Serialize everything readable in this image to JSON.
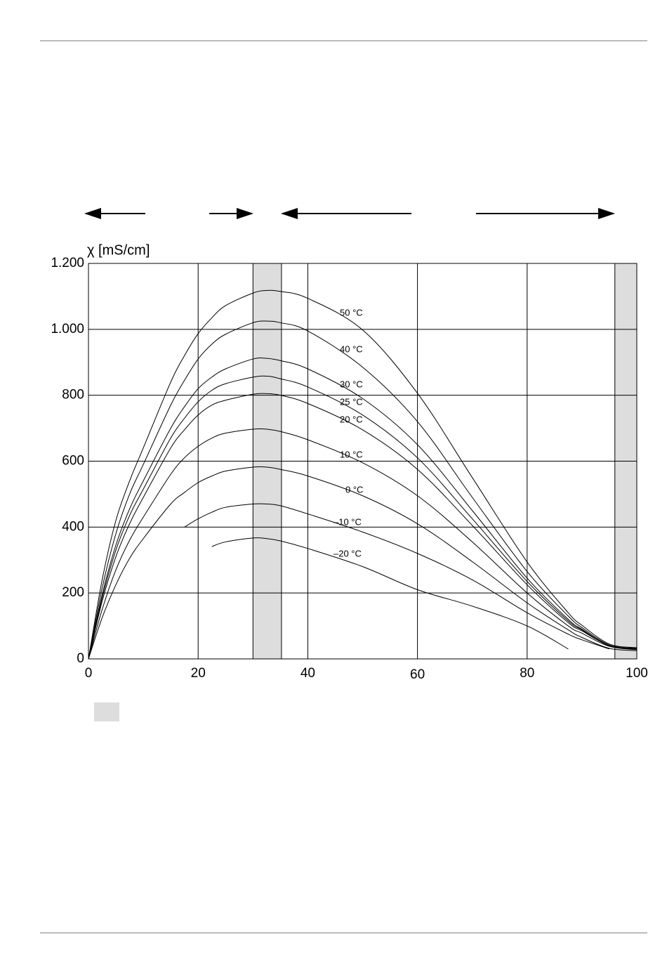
{
  "chart_data": {
    "type": "line",
    "y_label": "χ [mS/cm]",
    "x": [
      0,
      2.5,
      5,
      7.5,
      10,
      15,
      17.5,
      20,
      22.5,
      25,
      30,
      32.5,
      35,
      40,
      50,
      60,
      70,
      80,
      87.5,
      90,
      95,
      100
    ],
    "series": [
      {
        "name": "50 °C",
        "color": "#000000",
        "values": [
          0,
          240,
          420,
          540,
          640,
          840,
          920,
          987,
          1035,
          1072,
          1110,
          1118,
          1115,
          1094,
          998,
          806,
          550,
          294,
          140,
          102,
          45,
          34
        ]
      },
      {
        "name": "40 °C",
        "color": "#000000",
        "values": [
          0,
          215,
          380,
          500,
          590,
          770,
          845,
          910,
          955,
          985,
          1020,
          1025,
          1020,
          995,
          885,
          720,
          490,
          265,
          130,
          95,
          42,
          32
        ]
      },
      {
        "name": "30 °C",
        "color": "#000000",
        "values": [
          0,
          195,
          345,
          455,
          540,
          700,
          765,
          820,
          855,
          880,
          910,
          912,
          905,
          880,
          790,
          650,
          450,
          245,
          120,
          90,
          40,
          30
        ]
      },
      {
        "name": "25 °C",
        "color": "#000000",
        "values": [
          0,
          185,
          330,
          435,
          515,
          670,
          730,
          780,
          815,
          835,
          855,
          858,
          850,
          825,
          740,
          610,
          425,
          235,
          115,
          88,
          40,
          30
        ]
      },
      {
        "name": "20 °C",
        "color": "#000000",
        "values": [
          0,
          175,
          310,
          410,
          490,
          640,
          695,
          740,
          770,
          785,
          803,
          805,
          800,
          775,
          695,
          575,
          405,
          225,
          110,
          85,
          40,
          30
        ]
      },
      {
        "name": "10 °C",
        "color": "#000000",
        "values": [
          0,
          150,
          270,
          360,
          430,
          560,
          610,
          645,
          670,
          685,
          697,
          697,
          690,
          665,
          595,
          495,
          355,
          200,
          100,
          78,
          38,
          28
        ]
      },
      {
        "name": "0 °C",
        "color": "#000000",
        "values": [
          0,
          125,
          225,
          305,
          365,
          470,
          505,
          535,
          555,
          570,
          582,
          582,
          575,
          555,
          495,
          410,
          295,
          170,
          88,
          65,
          32,
          25
        ]
      },
      {
        "name": "–10 °C",
        "color": "#000000",
        "values": [
          null,
          null,
          null,
          null,
          null,
          null,
          400,
          425,
          445,
          460,
          470,
          470,
          465,
          440,
          385,
          320,
          240,
          140,
          75,
          58,
          30,
          null
        ]
      },
      {
        "name": "–20 °C",
        "color": "#000000",
        "values": [
          null,
          null,
          null,
          null,
          null,
          null,
          null,
          null,
          341,
          355,
          367,
          365,
          358,
          335,
          280,
          210,
          160,
          100,
          30,
          null,
          null,
          null
        ]
      }
    ],
    "bands": [
      [
        30,
        35.2
      ],
      [
        96,
        100
      ]
    ],
    "band_color": "#dddddd",
    "xlim": [
      0,
      100
    ],
    "xticks": [
      0,
      20,
      40,
      60,
      80,
      100
    ],
    "ylim": [
      0,
      1200
    ],
    "yticks": [
      0,
      200,
      400,
      600,
      800,
      {
        "value": 1000,
        "label": "1.000"
      },
      {
        "value": 1200,
        "label": "1.200"
      }
    ],
    "grid": true
  }
}
